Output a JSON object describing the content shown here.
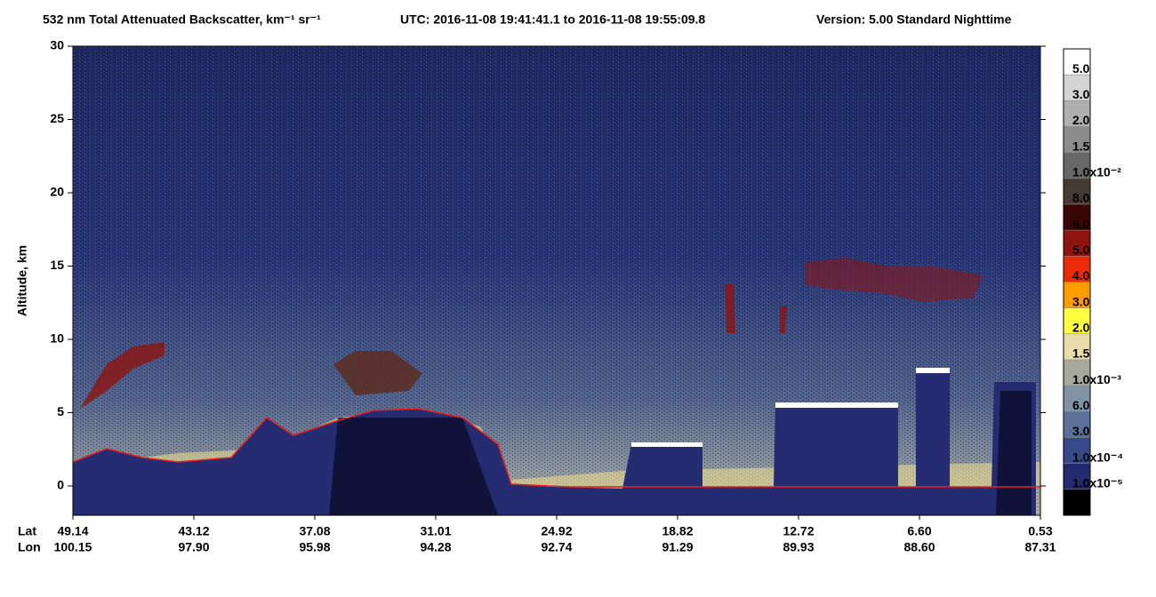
{
  "chart_data": {
    "type": "heatmap",
    "title": "532 nm Total Attenuated Backscatter, km⁻¹ sr⁻¹",
    "utc": "UTC:  2016-11-08 19:41:41.1  to  2016-11-08 19:55:09.8",
    "version": "Version: 5.00  Standard  Nighttime",
    "y_label": "Altitude, km",
    "ylim": [
      -2,
      30
    ],
    "yticks": [
      0,
      5,
      10,
      15,
      20,
      25,
      30
    ],
    "x_row_labels": [
      "Lat",
      "Lon"
    ],
    "lat": [
      "49.14",
      "43.12",
      "37.08",
      "31.01",
      "24.92",
      "18.82",
      "12.72",
      "6.60",
      "0.53"
    ],
    "lon": [
      "100.15",
      "97.90",
      "95.98",
      "94.28",
      "92.74",
      "91.29",
      "89.93",
      "88.60",
      "87.31"
    ],
    "colorbar": [
      {
        "label": "5.0",
        "color": "#ffffff"
      },
      {
        "label": "3.0",
        "color": "#d4d4d4"
      },
      {
        "label": "2.0",
        "color": "#b0b0b0"
      },
      {
        "label": "1.5",
        "color": "#8c8c8c"
      },
      {
        "label": "1.0x10⁻²",
        "color": "#676767"
      },
      {
        "label": "8.0",
        "color": "#463a35"
      },
      {
        "label": "6.0",
        "color": "#3a0505"
      },
      {
        "label": "5.0",
        "color": "#8e1410"
      },
      {
        "label": "4.0",
        "color": "#ea2a08"
      },
      {
        "label": "3.0",
        "color": "#ff9c00"
      },
      {
        "label": "2.0",
        "color": "#ffff40"
      },
      {
        "label": "1.5",
        "color": "#eadcaa"
      },
      {
        "label": "1.0x10⁻³",
        "color": "#a7a89c"
      },
      {
        "label": "6.0",
        "color": "#8194a6"
      },
      {
        "label": "3.0",
        "color": "#5c6f96"
      },
      {
        "label": "1.0x10⁻⁴",
        "color": "#38498a"
      },
      {
        "label": "1.0x10⁻⁵",
        "color": "#242a6e"
      },
      {
        "color": "#000000"
      }
    ]
  }
}
